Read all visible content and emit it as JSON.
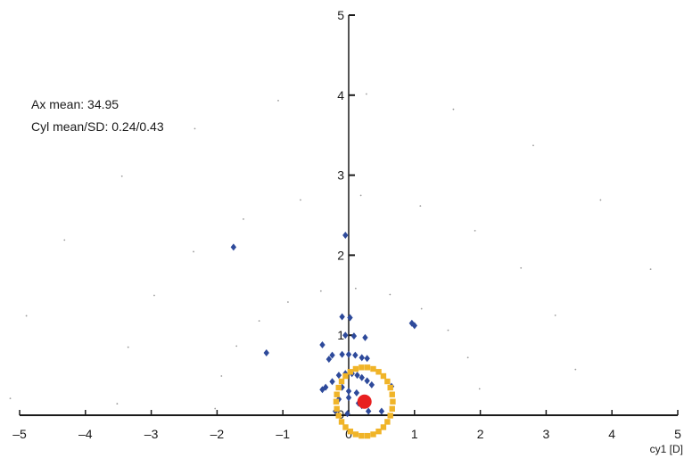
{
  "stats": {
    "ax_mean": "Ax mean: 34.95",
    "cyl_mean_sd": "Cyl mean/SD: 0.24/0.43"
  },
  "chart_data": {
    "type": "scatter",
    "xlabel": "cy1 [D]",
    "xlim": [
      -5,
      5
    ],
    "ylim": [
      0,
      5
    ],
    "x_ticks": [
      {
        "value": -5,
        "label": "–5"
      },
      {
        "value": -4,
        "label": "–4"
      },
      {
        "value": -3,
        "label": "–3"
      },
      {
        "value": -2,
        "label": "–2"
      },
      {
        "value": -1,
        "label": "–1"
      },
      {
        "value": 0,
        "label": "0"
      },
      {
        "value": 1,
        "label": "1"
      },
      {
        "value": 2,
        "label": "2"
      },
      {
        "value": 3,
        "label": "3"
      },
      {
        "value": 4,
        "label": "4"
      },
      {
        "value": 5,
        "label": "5"
      }
    ],
    "y_ticks": [
      {
        "value": 0,
        "label": "0"
      },
      {
        "value": 1,
        "label": "1"
      },
      {
        "value": 2,
        "label": "2"
      },
      {
        "value": 3,
        "label": "3"
      },
      {
        "value": 4,
        "label": "4"
      },
      {
        "value": 5,
        "label": "5"
      }
    ],
    "colors": {
      "points": "#2e4a9b",
      "circle": "#f0b428",
      "mean": "#e82020",
      "grid_dots": "#9a9a9a",
      "axis": "#1a1a1a"
    },
    "series": [
      {
        "marker": "diamond",
        "points": [
          [
            -1.75,
            2.1
          ],
          [
            -1.25,
            0.78
          ],
          [
            -0.05,
            2.25
          ],
          [
            -0.1,
            1.23
          ],
          [
            0.02,
            1.22
          ],
          [
            0.96,
            1.15
          ],
          [
            1.0,
            1.12
          ],
          [
            -0.4,
            0.88
          ],
          [
            -0.05,
            1.0
          ],
          [
            0.08,
            0.99
          ],
          [
            0.25,
            0.97
          ],
          [
            -0.3,
            0.7
          ],
          [
            -0.25,
            0.75
          ],
          [
            -0.1,
            0.76
          ],
          [
            0.0,
            0.76
          ],
          [
            0.1,
            0.75
          ],
          [
            0.2,
            0.72
          ],
          [
            0.28,
            0.71
          ],
          [
            -0.15,
            0.5
          ],
          [
            -0.05,
            0.52
          ],
          [
            0.05,
            0.52
          ],
          [
            0.13,
            0.5
          ],
          [
            0.2,
            0.47
          ],
          [
            0.28,
            0.43
          ],
          [
            0.35,
            0.38
          ],
          [
            -0.25,
            0.42
          ],
          [
            -0.35,
            0.35
          ],
          [
            -0.4,
            0.32
          ],
          [
            -0.1,
            0.35
          ],
          [
            0.0,
            0.3
          ],
          [
            0.12,
            0.28
          ],
          [
            -0.15,
            0.2
          ],
          [
            0.0,
            0.22
          ],
          [
            0.15,
            0.15
          ],
          [
            0.2,
            0.12
          ],
          [
            -0.2,
            0.05
          ],
          [
            0.3,
            0.05
          ],
          [
            0.5,
            0.05
          ],
          [
            0.65,
            0.36
          ],
          [
            -0.02,
            0.02
          ]
        ]
      }
    ],
    "circle": {
      "center_x": 0.24,
      "center_y": 0.17,
      "radius": 0.43
    },
    "mean_point": [
      0.24,
      0.17
    ]
  }
}
